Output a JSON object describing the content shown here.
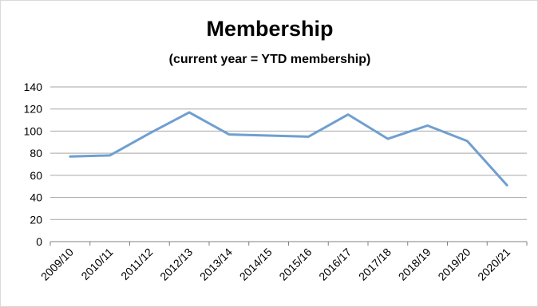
{
  "chart_data": {
    "type": "line",
    "title": "Membership",
    "subtitle": "(current year = YTD membership)",
    "xlabel": "",
    "ylabel": "",
    "categories": [
      "2009/10",
      "2010/11",
      "2011/12",
      "2012/13",
      "2013/14",
      "2014/15",
      "2015/16",
      "2016/17",
      "2017/18",
      "2018/19",
      "2019/20",
      "2020/21"
    ],
    "series": [
      {
        "values": [
          77,
          78,
          98,
          117,
          97,
          96,
          95,
          115,
          93,
          105,
          91,
          51
        ]
      }
    ],
    "ylim": [
      0,
      140
    ],
    "yticks": [
      0,
      20,
      40,
      60,
      80,
      100,
      120,
      140
    ],
    "grid": true,
    "legend": "none",
    "colors": {
      "line": "#6f9fd0",
      "grid": "#a6a6a6",
      "axis": "#808080"
    }
  }
}
